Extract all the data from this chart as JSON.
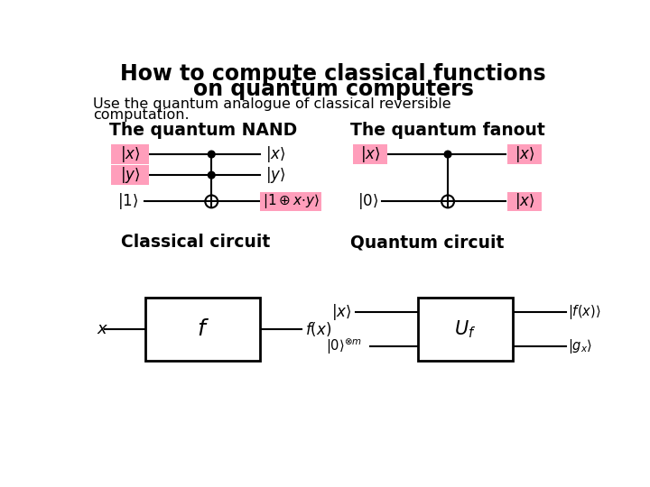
{
  "title_line1": "How to compute classical functions",
  "title_line2": "on quantum computers",
  "subtitle1": "Use the quantum analogue of classical reversible",
  "subtitle2": "computation.",
  "nand_title": "The quantum NAND",
  "fanout_title": "The quantum fanout",
  "classical_title": "Classical circuit",
  "quantum_title": "Quantum circuit",
  "pink_color": "#FF9EBB",
  "bg_color": "#FFFFFF",
  "line_color": "#000000",
  "title_fontsize": 17,
  "subtitle_fontsize": 11.5,
  "section_fontsize": 13.5,
  "circuit_fontsize": 12
}
